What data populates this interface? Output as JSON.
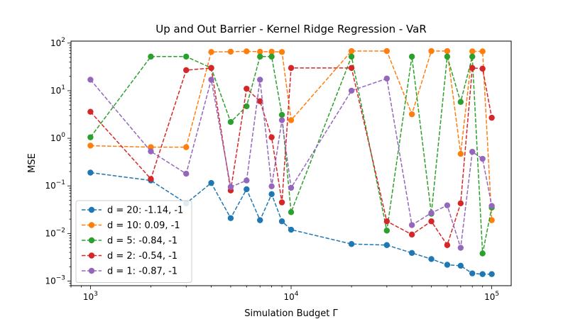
{
  "chart_data": {
    "type": "line",
    "title": "Up and Out Barrier - Kernel Ridge Regression - VaR",
    "xlabel": "Simulation Budget Γ",
    "ylabel": "MSE",
    "xscale": "log",
    "yscale": "log",
    "xlim": [
      800,
      125000
    ],
    "ylim": [
      0.0008,
      110
    ],
    "x_ticks": [
      {
        "value": 1000,
        "base": "10",
        "exp": "3"
      },
      {
        "value": 10000,
        "base": "10",
        "exp": "4"
      },
      {
        "value": 100000,
        "base": "10",
        "exp": "5"
      }
    ],
    "y_ticks": [
      {
        "value": 0.001,
        "base": "10",
        "exp": "−3"
      },
      {
        "value": 0.01,
        "base": "10",
        "exp": "−2"
      },
      {
        "value": 0.1,
        "base": "10",
        "exp": "−1"
      },
      {
        "value": 1,
        "base": "10",
        "exp": "0"
      },
      {
        "value": 10,
        "base": "10",
        "exp": "1"
      },
      {
        "value": 100,
        "base": "10",
        "exp": "2"
      }
    ],
    "grid": false,
    "legend_position": "lower-left",
    "line_style": "dashed",
    "marker": "circle",
    "x": [
      1000,
      2000,
      3000,
      4000,
      5000,
      6000,
      7000,
      8000,
      9000,
      10000,
      20000,
      30000,
      40000,
      50000,
      60000,
      70000,
      80000,
      90000,
      100000
    ],
    "series": [
      {
        "name": "d = 20: -1.14, -1",
        "color": "#1f77b4",
        "values": [
          0.19,
          0.13,
          0.043,
          0.115,
          0.021,
          0.085,
          0.019,
          0.067,
          0.018,
          0.012,
          0.006,
          0.0057,
          0.0039,
          0.0029,
          0.0022,
          0.0021,
          0.00145,
          0.0014,
          0.0014
        ]
      },
      {
        "name": "d = 10: 0.09, -1",
        "color": "#ff7f0e",
        "values": [
          0.7,
          0.65,
          0.65,
          65,
          66,
          67,
          66,
          66,
          65,
          2.4,
          68,
          68,
          3.2,
          68,
          68,
          0.47,
          67,
          67,
          0.019
        ]
      },
      {
        "name": "d = 5: -0.84, -1",
        "color": "#2ca02c",
        "values": [
          1.05,
          52,
          52,
          30,
          2.2,
          4.7,
          52,
          52,
          3.1,
          0.028,
          52,
          0.0115,
          52,
          0.026,
          52,
          5.8,
          52,
          0.0038,
          0.035
        ]
      },
      {
        "name": "d = 2: -0.54, -1",
        "color": "#d62728",
        "values": [
          3.6,
          0.14,
          27,
          30,
          0.08,
          11,
          6.0,
          1.05,
          0.045,
          30,
          30,
          0.018,
          0.0095,
          0.018,
          0.0057,
          0.043,
          30,
          29,
          2.7
        ]
      },
      {
        "name": "d = 1: -0.87, -1",
        "color": "#9467bd",
        "values": [
          17,
          0.53,
          0.18,
          17,
          0.095,
          0.13,
          17,
          0.098,
          2.4,
          0.091,
          10,
          18,
          0.015,
          0.027,
          0.039,
          0.005,
          0.52,
          0.37,
          0.038
        ]
      }
    ]
  }
}
